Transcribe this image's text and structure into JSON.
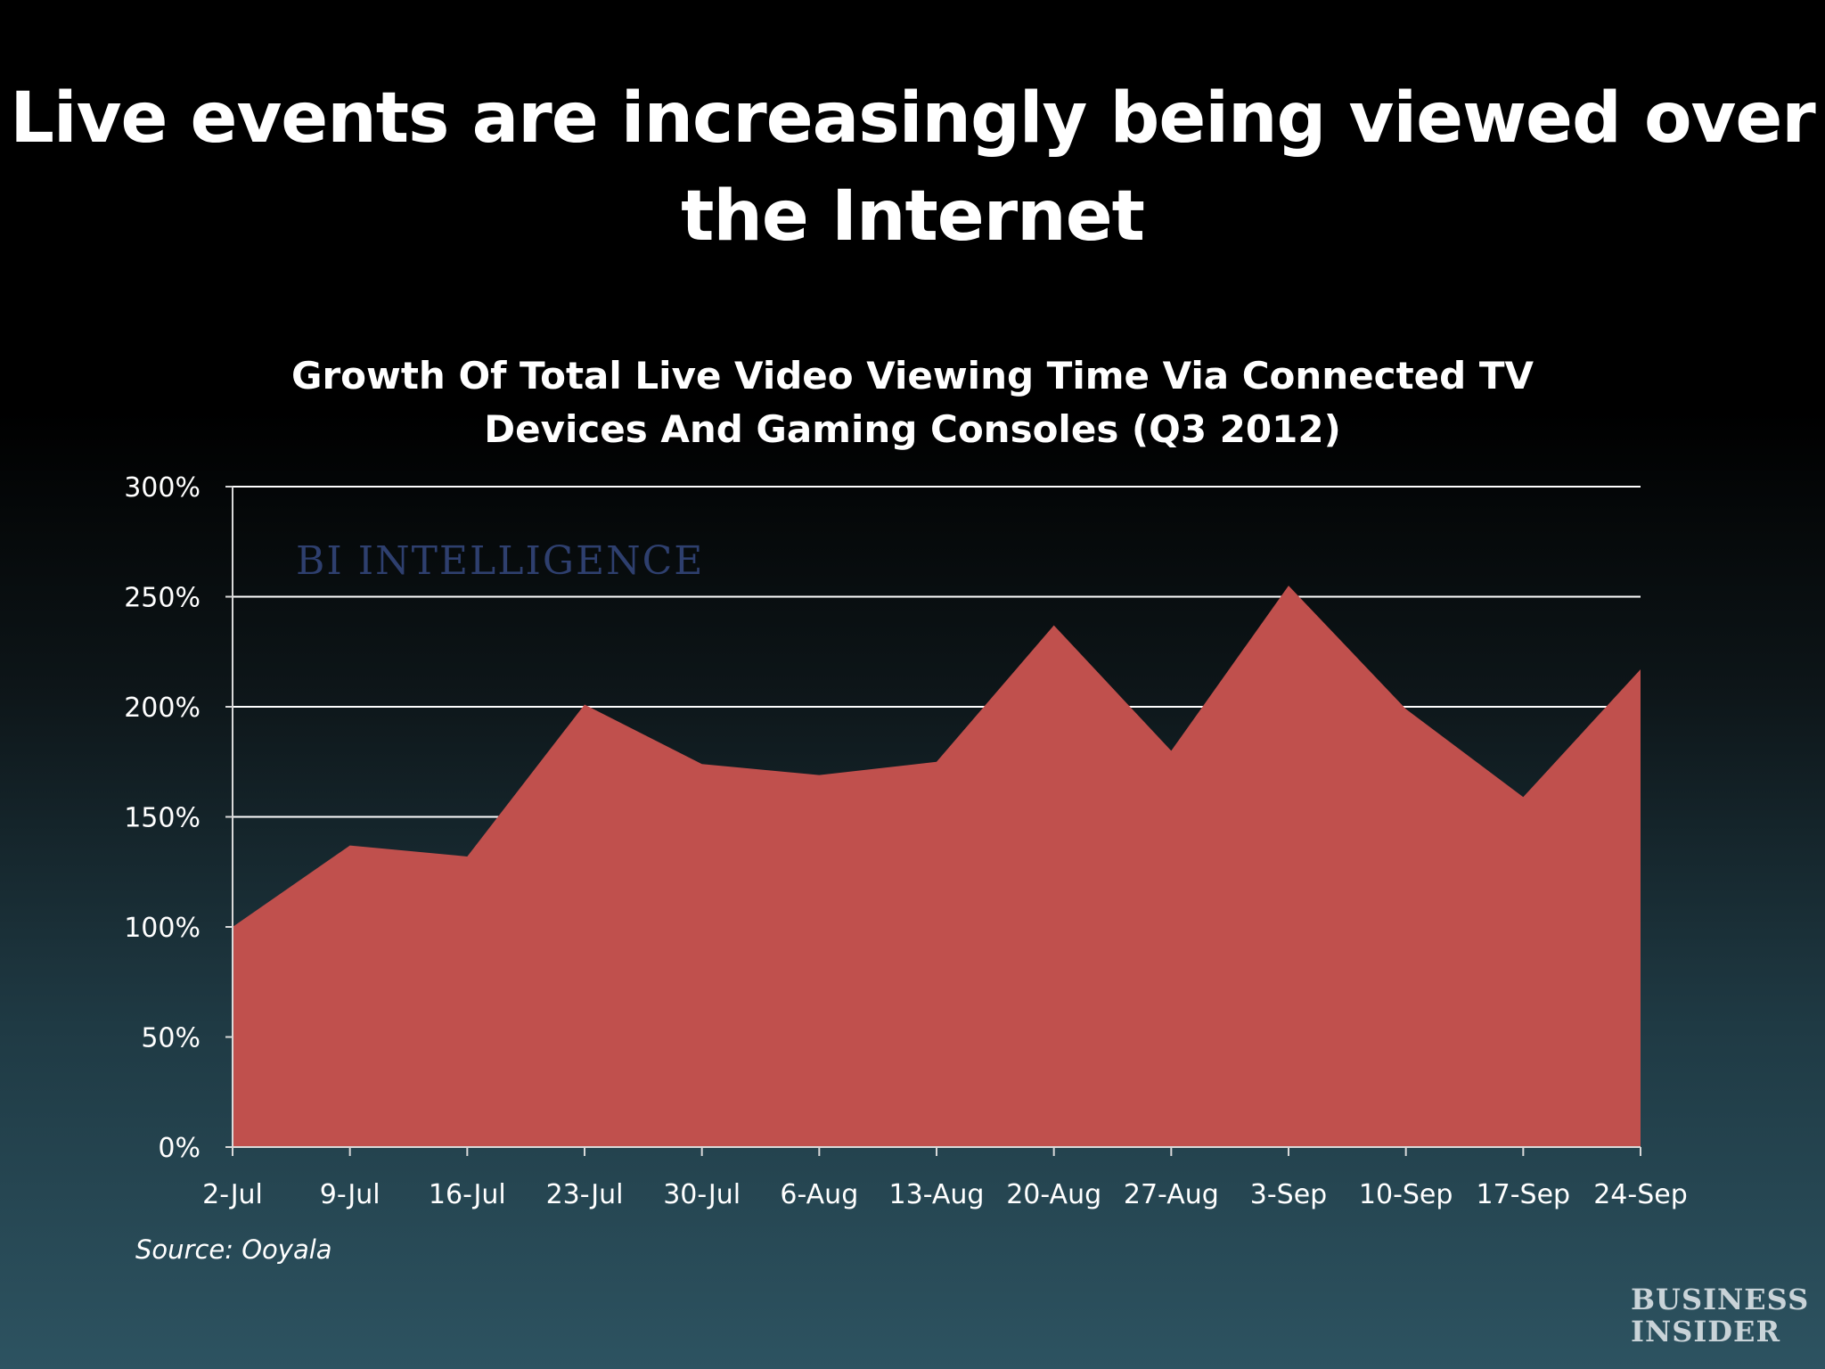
{
  "slide": {
    "title_line1": "Live events are increasingly being viewed over",
    "title_line2": "the Internet",
    "source": "Source: Ooyala",
    "watermark": "BI INTELLIGENCE",
    "logo_line1": "BUSINESS",
    "logo_line2": "INSIDER"
  },
  "colors": {
    "background_top": "#000000",
    "background_bottom": "#2d5361",
    "area_fill": "#c0504d",
    "gridline": "#ffffff",
    "text": "#ffffff"
  },
  "chart_data": {
    "type": "area",
    "title_line1": "Growth Of Total Live Video Viewing Time Via Connected TV",
    "title_line2": "Devices And Gaming Consoles (Q3 2012)",
    "xlabel": "",
    "ylabel": "",
    "categories": [
      "2-Jul",
      "9-Jul",
      "16-Jul",
      "23-Jul",
      "30-Jul",
      "6-Aug",
      "13-Aug",
      "20-Aug",
      "27-Aug",
      "3-Sep",
      "10-Sep",
      "17-Sep",
      "24-Sep"
    ],
    "series": [
      {
        "values": [
          100,
          137,
          132,
          201,
          174,
          169,
          175,
          237,
          180,
          255,
          199,
          159,
          217
        ]
      }
    ],
    "ylim": [
      0,
      300
    ],
    "yticks": [
      0,
      50,
      100,
      150,
      200,
      250,
      300
    ],
    "ytick_labels": [
      "0%",
      "50%",
      "100%",
      "150%",
      "200%",
      "250%",
      "300%"
    ],
    "grid": true,
    "legend": "none"
  }
}
